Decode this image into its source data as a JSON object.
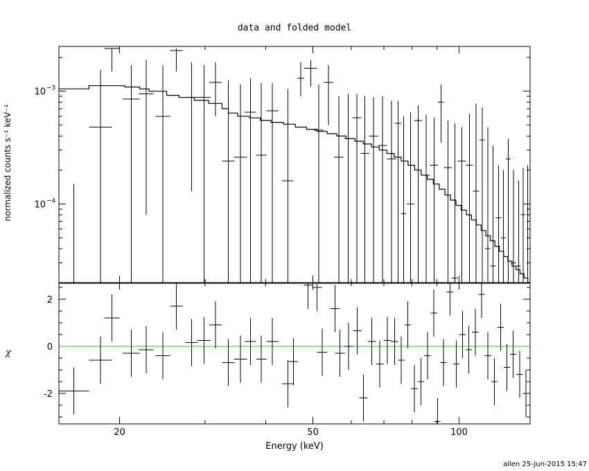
{
  "chart_data": [
    {
      "type": "scatter",
      "title": "data and folded model",
      "xlabel": "Energy (keV)",
      "ylabel": "normalized counts s⁻¹ keV⁻¹",
      "xscale": "log",
      "yscale": "log",
      "xlim": [
        15,
        140
      ],
      "ylim": [
        2e-05,
        0.0025
      ],
      "yticks": [
        {
          "value": 0.001,
          "base": "10",
          "exp": "−3"
        },
        {
          "value": 0.0001,
          "base": "10",
          "exp": "−4"
        }
      ],
      "grid": false,
      "series": [
        {
          "kind": "data-with-errors",
          "color": "#000000",
          "points": [
            {
              "x0": 15.0,
              "x1": 17.3,
              "y": 2e-05,
              "ylo": 2e-05,
              "yhi": 0.00015
            },
            {
              "x0": 17.3,
              "x1": 19.3,
              "y": 0.00048,
              "ylo": 2e-05,
              "yhi": 0.00155
            },
            {
              "x0": 18.6,
              "x1": 20.0,
              "y": 0.0024,
              "ylo": 0.0015,
              "yhi": 0.0024
            },
            {
              "x0": 20.3,
              "x1": 22.0,
              "y": 0.00085,
              "ylo": 2e-05,
              "yhi": 0.0017
            },
            {
              "x0": 21.9,
              "x1": 23.5,
              "y": 0.00095,
              "ylo": 8e-05,
              "yhi": 0.0019
            },
            {
              "x0": 23.7,
              "x1": 25.4,
              "y": 0.0006,
              "ylo": 2e-05,
              "yhi": 0.0017
            },
            {
              "x0": 25.4,
              "x1": 27.0,
              "y": 0.0023,
              "ylo": 0.0015,
              "yhi": 0.0024
            },
            {
              "x0": 27.3,
              "x1": 29.0,
              "y": 0.00088,
              "ylo": 0.00013,
              "yhi": 0.0018
            },
            {
              "x0": 28.9,
              "x1": 30.8,
              "y": 0.00088,
              "ylo": 2e-05,
              "yhi": 0.0017
            },
            {
              "x0": 30.6,
              "x1": 32.5,
              "y": 0.0012,
              "ylo": 0.0006,
              "yhi": 0.0018
            },
            {
              "x0": 32.5,
              "x1": 34.5,
              "y": 0.00024,
              "ylo": 2e-05,
              "yhi": 0.00125
            },
            {
              "x0": 34.4,
              "x1": 36.6,
              "y": 0.00026,
              "ylo": 2e-05,
              "yhi": 0.00115
            },
            {
              "x0": 36.2,
              "x1": 38.2,
              "y": 0.00065,
              "ylo": 2e-05,
              "yhi": 0.0013
            },
            {
              "x0": 38.2,
              "x1": 40.1,
              "y": 0.00027,
              "ylo": 2e-05,
              "yhi": 0.00118
            },
            {
              "x0": 40.1,
              "x1": 42.5,
              "y": 0.00067,
              "ylo": 2e-05,
              "yhi": 0.00118
            },
            {
              "x0": 43.2,
              "x1": 45.6,
              "y": 0.00016,
              "ylo": 2e-05,
              "yhi": 0.00105
            },
            {
              "x0": 46.4,
              "x1": 48.0,
              "y": 0.0013,
              "ylo": 0.0009,
              "yhi": 0.0018
            },
            {
              "x0": 48.0,
              "x1": 51.0,
              "y": 0.0016,
              "ylo": 0.0011,
              "yhi": 0.0019
            },
            {
              "x0": 50.2,
              "x1": 52.6,
              "y": 0.00045,
              "ylo": 2e-05,
              "yhi": 0.00115
            },
            {
              "x0": 52.6,
              "x1": 55.1,
              "y": 0.0012,
              "ylo": 0.0005,
              "yhi": 0.0017
            },
            {
              "x0": 55.3,
              "x1": 57.8,
              "y": 0.00026,
              "ylo": 2e-05,
              "yhi": 0.0009
            },
            {
              "x0": 58.0,
              "x1": 60.3,
              "y": 0.00038,
              "ylo": 2e-05,
              "yhi": 0.00095
            },
            {
              "x0": 60.3,
              "x1": 62.9,
              "y": 0.00058,
              "ylo": 2e-05,
              "yhi": 0.00095
            },
            {
              "x0": 62.7,
              "x1": 65.3,
              "y": 0.00028,
              "ylo": 2e-05,
              "yhi": 0.0009
            },
            {
              "x0": 65.3,
              "x1": 68.1,
              "y": 0.0004,
              "ylo": 2e-05,
              "yhi": 0.00088
            },
            {
              "x0": 68.1,
              "x1": 71.0,
              "y": 0.00033,
              "ylo": 2e-05,
              "yhi": 0.0009
            },
            {
              "x0": 71.0,
              "x1": 74.1,
              "y": 0.00025,
              "ylo": 2e-05,
              "yhi": 0.00082
            },
            {
              "x0": 73.8,
              "x1": 76.0,
              "y": 0.00052,
              "ylo": 2e-05,
              "yhi": 0.00082
            },
            {
              "x0": 76.0,
              "x1": 77.8,
              "y": 8.2e-05,
              "ylo": 2e-05,
              "yhi": 0.0006
            },
            {
              "x0": 78.0,
              "x1": 80.8,
              "y": 0.0001,
              "ylo": 2e-05,
              "yhi": 0.00065
            },
            {
              "x0": 80.8,
              "x1": 83.9,
              "y": 0.00055,
              "ylo": 2e-05,
              "yhi": 0.00075
            },
            {
              "x0": 83.9,
              "x1": 87.1,
              "y": 0.00018,
              "ylo": 2e-05,
              "yhi": 0.00062
            },
            {
              "x0": 87.1,
              "x1": 90.5,
              "y": 0.00022,
              "ylo": 2e-05,
              "yhi": 0.00058
            },
            {
              "x0": 90.5,
              "x1": 93.0,
              "y": 0.0008,
              "ylo": 0.00035,
              "yhi": 0.00115
            },
            {
              "x0": 93.0,
              "x1": 96.6,
              "y": 0.00021,
              "ylo": 2e-05,
              "yhi": 0.00055
            },
            {
              "x0": 96.6,
              "x1": 99.4,
              "y": 2.2e-05,
              "ylo": 2e-05,
              "yhi": 0.00052
            },
            {
              "x0": 99.4,
              "x1": 103.3,
              "y": 0.00024,
              "ylo": 2e-05,
              "yhi": 0.00048
            },
            {
              "x0": 103.3,
              "x1": 106.7,
              "y": 0.00022,
              "ylo": 2e-05,
              "yhi": 0.00063
            },
            {
              "x0": 106.7,
              "x1": 110.0,
              "y": 0.00013,
              "ylo": 2e-05,
              "yhi": 0.00078
            },
            {
              "x0": 110.2,
              "x1": 112.9,
              "y": 0.00037,
              "ylo": 2e-05,
              "yhi": 0.00072
            },
            {
              "x0": 113.1,
              "x1": 115.9,
              "y": 4e-05,
              "ylo": 2e-05,
              "yhi": 0.00048
            },
            {
              "x0": 116.0,
              "x1": 119.0,
              "y": 2.8e-05,
              "ylo": 2e-05,
              "yhi": 0.00033
            },
            {
              "x0": 119.0,
              "x1": 122.1,
              "y": 7.5e-05,
              "ylo": 2e-05,
              "yhi": 0.00022
            },
            {
              "x0": 122.0,
              "x1": 124.8,
              "y": 5e-05,
              "ylo": 2e-05,
              "yhi": 0.0002
            },
            {
              "x0": 124.8,
              "x1": 127.8,
              "y": 0.00025,
              "ylo": 2e-05,
              "yhi": 0.00038
            },
            {
              "x0": 127.8,
              "x1": 130.9,
              "y": 3e-05,
              "ylo": 2e-05,
              "yhi": 0.0002
            },
            {
              "x0": 131.1,
              "x1": 134.0,
              "y": 2.8e-05,
              "ylo": 2e-05,
              "yhi": 0.00016
            },
            {
              "x0": 134.0,
              "x1": 137.0,
              "y": 8e-05,
              "ylo": 2e-05,
              "yhi": 0.00021
            },
            {
              "x0": 137.0,
              "x1": 140.0,
              "y": 0.0001,
              "ylo": 2e-05,
              "yhi": 0.00022
            }
          ]
        },
        {
          "kind": "folded-model-step",
          "color": "#000000",
          "steps": [
            [
              15.0,
              0.00105
            ],
            [
              17.3,
              0.00112
            ],
            [
              19.3,
              0.00112
            ],
            [
              20.5,
              0.00109
            ],
            [
              22.0,
              0.00105
            ],
            [
              23.0,
              0.001
            ],
            [
              25.0,
              0.00092
            ],
            [
              26.5,
              0.00088
            ],
            [
              28.5,
              0.00083
            ],
            [
              30.5,
              0.00078
            ],
            [
              32.5,
              0.0007
            ],
            [
              33.5,
              0.00064
            ],
            [
              35.0,
              0.0006
            ],
            [
              37.0,
              0.00058
            ],
            [
              39.0,
              0.00055
            ],
            [
              41.0,
              0.00053
            ],
            [
              43.5,
              0.00051
            ],
            [
              46.0,
              0.00048
            ],
            [
              48.5,
              0.00046
            ],
            [
              51.0,
              0.00044
            ],
            [
              53.5,
              0.00042
            ],
            [
              56.0,
              0.0004
            ],
            [
              58.5,
              0.00038
            ],
            [
              61.0,
              0.00036
            ],
            [
              63.5,
              0.00034
            ],
            [
              66.0,
              0.00032
            ],
            [
              68.5,
              0.0003
            ],
            [
              71.0,
              0.00028
            ],
            [
              73.5,
              0.00026
            ],
            [
              76.0,
              0.00024
            ],
            [
              78.5,
              0.00022
            ],
            [
              81.0,
              0.0002
            ],
            [
              83.5,
              0.00018
            ],
            [
              86.0,
              0.000165
            ],
            [
              88.5,
              0.00015
            ],
            [
              91.0,
              0.000135
            ],
            [
              93.5,
              0.00012
            ],
            [
              96.0,
              0.000108
            ],
            [
              98.5,
              9.7e-05
            ],
            [
              101.0,
              8.8e-05
            ],
            [
              103.5,
              8e-05
            ],
            [
              106.0,
              7.2e-05
            ],
            [
              108.5,
              6.5e-05
            ],
            [
              111.0,
              5.8e-05
            ],
            [
              113.5,
              5.2e-05
            ],
            [
              116.0,
              4.7e-05
            ],
            [
              118.5,
              4.2e-05
            ],
            [
              121.0,
              3.8e-05
            ],
            [
              123.5,
              3.4e-05
            ],
            [
              126.0,
              3.1e-05
            ],
            [
              128.5,
              2.8e-05
            ],
            [
              131.0,
              2.6e-05
            ],
            [
              133.5,
              2.4e-05
            ],
            [
              136.0,
              2.2e-05
            ],
            [
              138.5,
              2e-05
            ]
          ],
          "end": 140
        }
      ]
    },
    {
      "type": "scatter",
      "xlabel": "Energy (keV)",
      "ylabel": "χ",
      "xscale": "log",
      "xlim": [
        15,
        140
      ],
      "ylim": [
        -3.3,
        2.7
      ],
      "xticks": [
        20,
        50,
        100
      ],
      "yticks": [
        2,
        0,
        -2
      ],
      "zero_line_color": "#22cc22",
      "residuals": [
        {
          "x0": 15.0,
          "x1": 17.3,
          "y": -1.9,
          "lo": -2.9,
          "hi": -0.9
        },
        {
          "x0": 17.3,
          "x1": 19.3,
          "y": -0.6,
          "lo": -1.6,
          "hi": 0.4
        },
        {
          "x0": 18.6,
          "x1": 20.0,
          "y": 1.2,
          "lo": 0.2,
          "hi": 2.2
        },
        {
          "x0": 20.3,
          "x1": 22.0,
          "y": -0.3,
          "lo": -1.3,
          "hi": 0.7
        },
        {
          "x0": 21.9,
          "x1": 23.5,
          "y": -0.15,
          "lo": -1.15,
          "hi": 0.85
        },
        {
          "x0": 23.7,
          "x1": 25.4,
          "y": -0.4,
          "lo": -1.4,
          "hi": 0.6
        },
        {
          "x0": 25.4,
          "x1": 27.0,
          "y": 1.7,
          "lo": 0.7,
          "hi": 2.7
        },
        {
          "x0": 27.3,
          "x1": 29.0,
          "y": 0.15,
          "lo": -0.85,
          "hi": 1.15
        },
        {
          "x0": 28.9,
          "x1": 30.8,
          "y": 0.25,
          "lo": -0.75,
          "hi": 1.25
        },
        {
          "x0": 30.6,
          "x1": 32.5,
          "y": 0.9,
          "lo": -0.1,
          "hi": 1.9
        },
        {
          "x0": 32.5,
          "x1": 34.5,
          "y": -0.7,
          "lo": -1.7,
          "hi": 0.3
        },
        {
          "x0": 34.4,
          "x1": 36.6,
          "y": -0.55,
          "lo": -1.55,
          "hi": 0.45
        },
        {
          "x0": 36.2,
          "x1": 38.2,
          "y": 0.2,
          "lo": -0.8,
          "hi": 1.2
        },
        {
          "x0": 38.2,
          "x1": 40.1,
          "y": -0.55,
          "lo": -1.55,
          "hi": 0.45
        },
        {
          "x0": 40.1,
          "x1": 42.5,
          "y": 0.2,
          "lo": -0.8,
          "hi": 1.2
        },
        {
          "x0": 43.2,
          "x1": 45.6,
          "y": -1.6,
          "lo": -2.6,
          "hi": -0.6
        },
        {
          "x0": 44.6,
          "x1": 46.6,
          "y": -0.65,
          "lo": -1.65,
          "hi": 0.35
        },
        {
          "x0": 48.0,
          "x1": 49.8,
          "y": 2.6,
          "lo": 1.6,
          "hi": 2.7
        },
        {
          "x0": 49.8,
          "x1": 52.2,
          "y": 2.5,
          "lo": 1.5,
          "hi": 2.7
        },
        {
          "x0": 51.0,
          "x1": 53.5,
          "y": -0.25,
          "lo": -1.25,
          "hi": 0.75
        },
        {
          "x0": 54.3,
          "x1": 56.8,
          "y": 1.6,
          "lo": 0.6,
          "hi": 2.6
        },
        {
          "x0": 55.5,
          "x1": 58.2,
          "y": -0.3,
          "lo": -1.3,
          "hi": 0.7
        },
        {
          "x0": 58.0,
          "x1": 60.5,
          "y": 0.0,
          "lo": -1.0,
          "hi": 1.0
        },
        {
          "x0": 60.5,
          "x1": 63.0,
          "y": 0.65,
          "lo": -0.35,
          "hi": 1.65
        },
        {
          "x0": 62.3,
          "x1": 64.8,
          "y": -2.2,
          "lo": -3.2,
          "hi": -1.2
        },
        {
          "x0": 64.8,
          "x1": 67.4,
          "y": 0.2,
          "lo": -0.8,
          "hi": 1.2
        },
        {
          "x0": 67.4,
          "x1": 69.9,
          "y": -0.75,
          "lo": -1.75,
          "hi": 0.25
        },
        {
          "x0": 69.9,
          "x1": 72.4,
          "y": 0.25,
          "lo": -0.75,
          "hi": 1.25
        },
        {
          "x0": 72.4,
          "x1": 74.9,
          "y": 0.2,
          "lo": -0.8,
          "hi": 1.2
        },
        {
          "x0": 74.9,
          "x1": 77.2,
          "y": -0.6,
          "lo": -1.6,
          "hi": 0.4
        },
        {
          "x0": 77.2,
          "x1": 79.6,
          "y": 0.9,
          "lo": -0.1,
          "hi": 1.9
        },
        {
          "x0": 79.6,
          "x1": 82.2,
          "y": -1.8,
          "lo": -2.8,
          "hi": -0.8
        },
        {
          "x0": 82.2,
          "x1": 84.7,
          "y": -1.5,
          "lo": -2.5,
          "hi": -0.5
        },
        {
          "x0": 84.7,
          "x1": 87.4,
          "y": -0.4,
          "lo": -1.4,
          "hi": 0.6
        },
        {
          "x0": 87.4,
          "x1": 90.1,
          "y": 1.4,
          "lo": 0.4,
          "hi": 2.4
        },
        {
          "x0": 89.0,
          "x1": 91.5,
          "y": -3.2,
          "lo": -3.3,
          "hi": -2.2
        },
        {
          "x0": 91.5,
          "x1": 94.3,
          "y": -0.7,
          "lo": -1.7,
          "hi": 0.3
        },
        {
          "x0": 94.3,
          "x1": 97.2,
          "y": 2.3,
          "lo": 1.3,
          "hi": 2.7
        },
        {
          "x0": 97.2,
          "x1": 100.1,
          "y": -0.75,
          "lo": -1.75,
          "hi": 0.25
        },
        {
          "x0": 100.1,
          "x1": 103.2,
          "y": 0.5,
          "lo": -0.5,
          "hi": 1.5
        },
        {
          "x0": 103.2,
          "x1": 106.3,
          "y": -0.15,
          "lo": -1.15,
          "hi": 0.85
        },
        {
          "x0": 106.3,
          "x1": 109.6,
          "y": 0.6,
          "lo": -0.4,
          "hi": 1.6
        },
        {
          "x0": 109.6,
          "x1": 112.9,
          "y": 2.2,
          "lo": 1.2,
          "hi": 2.7
        },
        {
          "x0": 112.9,
          "x1": 116.4,
          "y": -0.4,
          "lo": -1.4,
          "hi": 0.6
        },
        {
          "x0": 116.4,
          "x1": 119.9,
          "y": -1.5,
          "lo": -2.5,
          "hi": -0.5
        },
        {
          "x0": 119.9,
          "x1": 123.5,
          "y": 0.8,
          "lo": -0.2,
          "hi": 1.8
        },
        {
          "x0": 123.5,
          "x1": 127.3,
          "y": -0.9,
          "lo": -1.9,
          "hi": 0.1
        },
        {
          "x0": 127.3,
          "x1": 131.2,
          "y": -0.35,
          "lo": -1.35,
          "hi": 0.65
        },
        {
          "x0": 131.2,
          "x1": 135.2,
          "y": -1.2,
          "lo": -2.2,
          "hi": -0.2
        },
        {
          "x0": 135.2,
          "x1": 139.4,
          "y": -2.0,
          "lo": -3.0,
          "hi": -1.0
        }
      ]
    }
  ],
  "footer": {
    "stamp": "allen 25-Jun-2015 15:47"
  }
}
